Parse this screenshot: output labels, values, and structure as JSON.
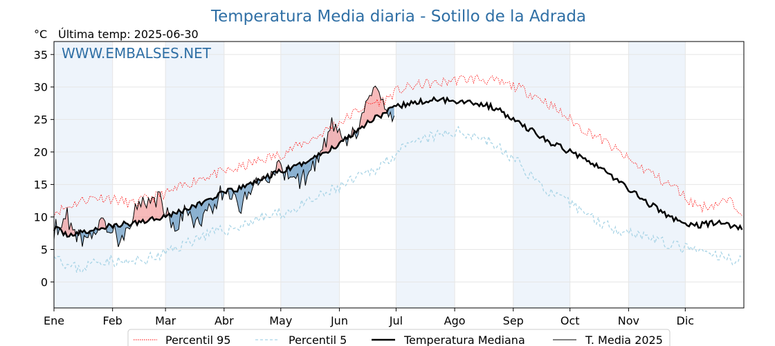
{
  "chart_data": {
    "type": "line",
    "title": "Temperatura Media diaria - Sotillo de la Adrada",
    "unit_label": "°C",
    "last_temp_label": "Última temp: 2025-06-30",
    "watermark": "WWW.EMBALSES.NET",
    "ylim": [
      -4,
      37
    ],
    "yticks": [
      0,
      5,
      10,
      15,
      20,
      25,
      30,
      35
    ],
    "xlim": [
      1,
      366
    ],
    "months": [
      {
        "label": "Ene",
        "day": 1
      },
      {
        "label": "Feb",
        "day": 32
      },
      {
        "label": "Mar",
        "day": 60
      },
      {
        "label": "Abr",
        "day": 91
      },
      {
        "label": "May",
        "day": 121
      },
      {
        "label": "Jun",
        "day": 152
      },
      {
        "label": "Jul",
        "day": 182
      },
      {
        "label": "Ago",
        "day": 213
      },
      {
        "label": "Sep",
        "day": 244
      },
      {
        "label": "Oct",
        "day": 274
      },
      {
        "label": "Nov",
        "day": 305
      },
      {
        "label": "Dic",
        "day": 335
      }
    ],
    "grid": true,
    "legend_position": "bottom",
    "colors": {
      "p95": "#ff0000",
      "p5": "#a8d4e6",
      "median": "#000000",
      "current": "#000000",
      "above_fill": "#f08080",
      "below_fill": "#4682b4",
      "band": "#eef4fb",
      "title": "#2f6fa5"
    },
    "series": [
      {
        "name": "Percentil 95",
        "style": "dotted-red",
        "x": [
          1,
          8,
          15,
          22,
          29,
          36,
          43,
          50,
          57,
          64,
          71,
          78,
          85,
          92,
          99,
          106,
          113,
          120,
          127,
          134,
          141,
          148,
          155,
          162,
          169,
          176,
          183,
          190,
          197,
          204,
          211,
          218,
          225,
          232,
          239,
          246,
          253,
          260,
          267,
          274,
          281,
          288,
          295,
          302,
          309,
          316,
          323,
          330,
          337,
          344,
          351,
          358,
          365
        ],
        "y": [
          10.8,
          11.5,
          12.5,
          13,
          13,
          12.5,
          12,
          12.8,
          13.3,
          14,
          15,
          16,
          16.5,
          17,
          17.5,
          18.3,
          19,
          19.5,
          20.5,
          21.5,
          22.5,
          24,
          25,
          26.5,
          27.5,
          28,
          29.5,
          30,
          30.5,
          30.5,
          31,
          31.2,
          31.3,
          31,
          30.5,
          30,
          29,
          28,
          26.5,
          25,
          23.5,
          22.5,
          21,
          19.5,
          18,
          17,
          15.5,
          14.5,
          12.5,
          11.5,
          12,
          12.5,
          11
        ]
      },
      {
        "name": "Percentil 5",
        "style": "dashed-lightblue",
        "x": [
          1,
          8,
          15,
          22,
          29,
          36,
          43,
          50,
          57,
          64,
          71,
          78,
          85,
          92,
          99,
          106,
          113,
          120,
          127,
          134,
          141,
          148,
          155,
          162,
          169,
          176,
          183,
          190,
          197,
          204,
          211,
          218,
          225,
          232,
          239,
          246,
          253,
          260,
          267,
          274,
          281,
          288,
          295,
          302,
          309,
          316,
          323,
          330,
          337,
          344,
          351,
          358,
          365
        ],
        "y": [
          4.8,
          2.5,
          2,
          3,
          3.5,
          3,
          3,
          3.5,
          4,
          5,
          6,
          7,
          7.5,
          8,
          8.5,
          9.5,
          10,
          10.5,
          11,
          12,
          13,
          14,
          15,
          16,
          17,
          18.5,
          20,
          21,
          22,
          22.5,
          23,
          23,
          22.5,
          21.5,
          20,
          18.5,
          16.5,
          14.5,
          13,
          12,
          11,
          9.5,
          8.5,
          8,
          7.5,
          7,
          6,
          5.5,
          5,
          4.5,
          4,
          3.5,
          3.5
        ]
      },
      {
        "name": "Temperatura Mediana",
        "style": "thick-black",
        "x": [
          1,
          8,
          15,
          22,
          29,
          36,
          43,
          50,
          57,
          64,
          71,
          78,
          85,
          92,
          99,
          106,
          113,
          120,
          127,
          134,
          141,
          148,
          155,
          162,
          169,
          176,
          183,
          190,
          197,
          204,
          211,
          218,
          225,
          232,
          239,
          246,
          253,
          260,
          267,
          274,
          281,
          288,
          295,
          302,
          309,
          316,
          323,
          330,
          337,
          344,
          351,
          358,
          365
        ],
        "y": [
          8.3,
          7.3,
          7.5,
          8,
          8.5,
          8.8,
          9,
          9.5,
          10,
          10.5,
          11.2,
          12,
          13,
          13.8,
          14.3,
          15.3,
          16,
          17,
          17.5,
          18.5,
          19.5,
          20.5,
          22,
          23.5,
          25,
          26,
          27,
          27.5,
          27.8,
          28,
          28,
          27.8,
          27.5,
          27,
          26,
          24.5,
          23.5,
          22,
          21,
          20,
          19.3,
          18,
          16.5,
          15,
          13.5,
          12,
          10.8,
          9.5,
          8.7,
          8.8,
          9.2,
          8.8,
          8.3
        ]
      },
      {
        "name": "T. Media 2025",
        "style": "thin-black",
        "x": [
          1,
          8,
          15,
          22,
          29,
          36,
          43,
          50,
          57,
          64,
          71,
          78,
          85,
          92,
          99,
          106,
          113,
          120,
          127,
          134,
          141,
          148,
          155,
          162,
          169,
          176,
          181
        ],
        "y": [
          8,
          10,
          6.5,
          8,
          9,
          6.5,
          10.5,
          12.5,
          13,
          8,
          11,
          8.5,
          12,
          14.5,
          11.5,
          15,
          16,
          17.5,
          15.5,
          16,
          19,
          24,
          21,
          23.5,
          29.5,
          27,
          25.5
        ]
      }
    ]
  },
  "legend": {
    "p95": "Percentil 95",
    "p5": "Percentil 5",
    "median": "Temperatura Mediana",
    "current": "T. Media 2025"
  }
}
